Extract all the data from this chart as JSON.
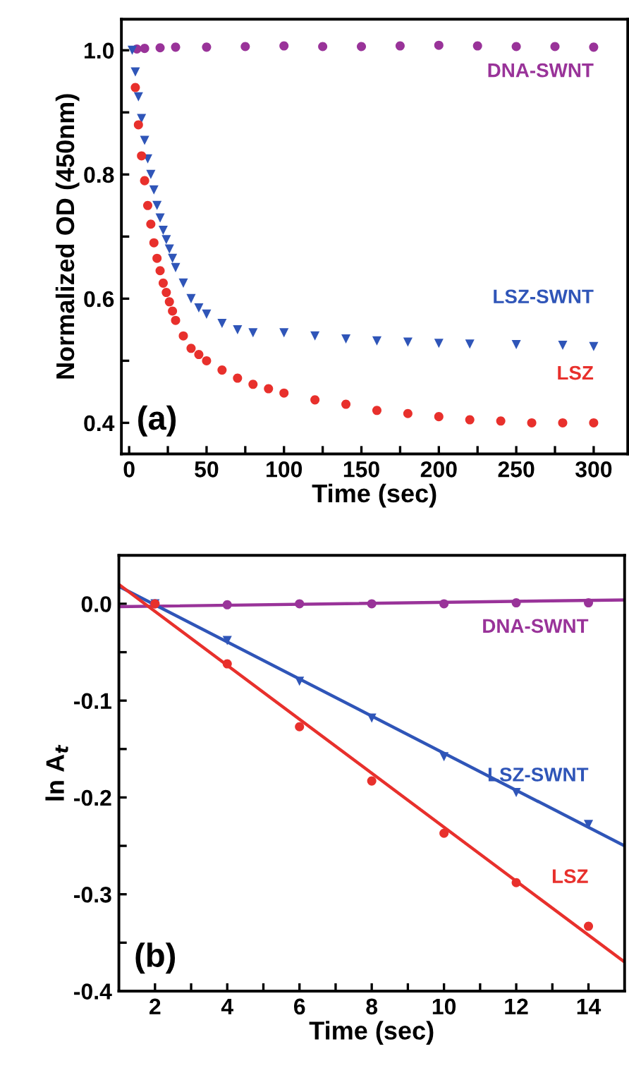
{
  "chart_data": [
    {
      "type": "scatter",
      "xlabel": "Time (sec)",
      "ylabel": "Normalized OD (450nm)",
      "annotations": [
        "(a)"
      ],
      "xlim": [
        -5,
        322
      ],
      "ylim": [
        0.35,
        1.05
      ],
      "xticks": [
        0,
        {
          "value": 25,
          "label": null
        },
        50,
        {
          "value": 75,
          "label": null
        },
        100,
        {
          "value": 125,
          "label": null
        },
        150,
        {
          "value": 175,
          "label": null
        },
        200,
        {
          "value": 225,
          "label": null
        },
        250,
        {
          "value": 275,
          "label": null
        },
        300
      ],
      "yticks": [
        0.4,
        {
          "value": 0.5,
          "label": null
        },
        0.6,
        {
          "value": 0.7,
          "label": null
        },
        0.8,
        {
          "value": 0.9,
          "label": null
        },
        {
          "value": 1.0,
          "label": "1.0"
        }
      ],
      "grid": false,
      "legend": false,
      "series": [
        {
          "name": "DNA-SWNT",
          "color": "#993399",
          "marker": "circle",
          "x": [
            5,
            10,
            20,
            30,
            50,
            75,
            100,
            125,
            150,
            175,
            200,
            225,
            250,
            275,
            300
          ],
          "values": [
            1.002,
            1.003,
            1.004,
            1.005,
            1.005,
            1.006,
            1.007,
            1.006,
            1.006,
            1.007,
            1.008,
            1.007,
            1.006,
            1.006,
            1.005
          ]
        },
        {
          "name": "LSZ-SWNT",
          "color": "#2f55b8",
          "marker": "triangle",
          "x": [
            2,
            4,
            6,
            8,
            10,
            12,
            14,
            16,
            18,
            20,
            22,
            24,
            26,
            28,
            30,
            35,
            40,
            45,
            50,
            60,
            70,
            80,
            100,
            120,
            140,
            160,
            180,
            200,
            220,
            250,
            280,
            300
          ],
          "values": [
            1.0,
            0.965,
            0.925,
            0.89,
            0.855,
            0.825,
            0.8,
            0.775,
            0.75,
            0.73,
            0.71,
            0.695,
            0.68,
            0.665,
            0.65,
            0.625,
            0.6,
            0.585,
            0.575,
            0.56,
            0.55,
            0.545,
            0.545,
            0.54,
            0.535,
            0.532,
            0.53,
            0.528,
            0.527,
            0.526,
            0.525,
            0.523
          ]
        },
        {
          "name": "LSZ",
          "color": "#e8302c",
          "marker": "circle",
          "x": [
            4,
            6,
            8,
            10,
            12,
            14,
            16,
            18,
            20,
            22,
            24,
            26,
            28,
            30,
            35,
            40,
            45,
            50,
            60,
            70,
            80,
            90,
            100,
            120,
            140,
            160,
            180,
            200,
            220,
            240,
            260,
            280,
            300
          ],
          "values": [
            0.94,
            0.88,
            0.83,
            0.79,
            0.75,
            0.72,
            0.69,
            0.665,
            0.645,
            0.625,
            0.61,
            0.595,
            0.58,
            0.565,
            0.54,
            0.52,
            0.51,
            0.5,
            0.485,
            0.472,
            0.462,
            0.455,
            0.448,
            0.437,
            0.43,
            0.42,
            0.415,
            0.41,
            0.405,
            0.403,
            0.4,
            0.4,
            0.4
          ]
        }
      ]
    },
    {
      "type": "scatter",
      "xlabel": "Time (sec)",
      "ylabel": "ln A$_{t}$",
      "annotations": [
        "(b)"
      ],
      "xlim": [
        1,
        15
      ],
      "ylim": [
        -0.4,
        0.05
      ],
      "xticks": [
        2,
        {
          "value": 3,
          "label": null
        },
        4,
        {
          "value": 5,
          "label": null
        },
        6,
        {
          "value": 7,
          "label": null
        },
        8,
        {
          "value": 9,
          "label": null
        },
        10,
        {
          "value": 11,
          "label": null
        },
        12,
        {
          "value": 13,
          "label": null
        },
        14
      ],
      "yticks": [
        {
          "value": -0.4,
          "label": "-0.4"
        },
        {
          "value": -0.35,
          "label": null
        },
        {
          "value": -0.3,
          "label": "-0.3"
        },
        {
          "value": -0.25,
          "label": null
        },
        {
          "value": -0.2,
          "label": "-0.2"
        },
        {
          "value": -0.15,
          "label": null
        },
        {
          "value": -0.1,
          "label": "-0.1"
        },
        {
          "value": -0.05,
          "label": null
        },
        {
          "value": 0.0,
          "label": "0.0"
        }
      ],
      "grid": false,
      "legend": false,
      "series": [
        {
          "name": "DNA-SWNT",
          "color": "#993399",
          "marker": "circle",
          "x": [
            2,
            4,
            6,
            8,
            10,
            12,
            14
          ],
          "values": [
            0.0,
            -0.001,
            0.0,
            0.0,
            0.0,
            0.001,
            0.001
          ]
        },
        {
          "type": "line",
          "color": "#993399",
          "x": [
            1,
            15
          ],
          "values": [
            -0.003,
            0.004
          ]
        },
        {
          "name": "LSZ-SWNT",
          "color": "#2f55b8",
          "marker": "triangle",
          "x": [
            2,
            4,
            6,
            8,
            10,
            12,
            14
          ],
          "values": [
            0.0,
            -0.038,
            -0.08,
            -0.118,
            -0.158,
            -0.195,
            -0.228
          ]
        },
        {
          "type": "line",
          "color": "#2f55b8",
          "x": [
            1,
            15
          ],
          "values": [
            0.018,
            -0.25
          ]
        },
        {
          "name": "LSZ",
          "color": "#e8302c",
          "marker": "circle",
          "x": [
            2,
            4,
            6,
            8,
            10,
            12,
            14
          ],
          "values": [
            0.0,
            -0.062,
            -0.127,
            -0.183,
            -0.237,
            -0.288,
            -0.333
          ]
        },
        {
          "type": "line",
          "color": "#e8302c",
          "x": [
            1,
            15
          ],
          "values": [
            0.02,
            -0.37
          ]
        }
      ]
    }
  ]
}
